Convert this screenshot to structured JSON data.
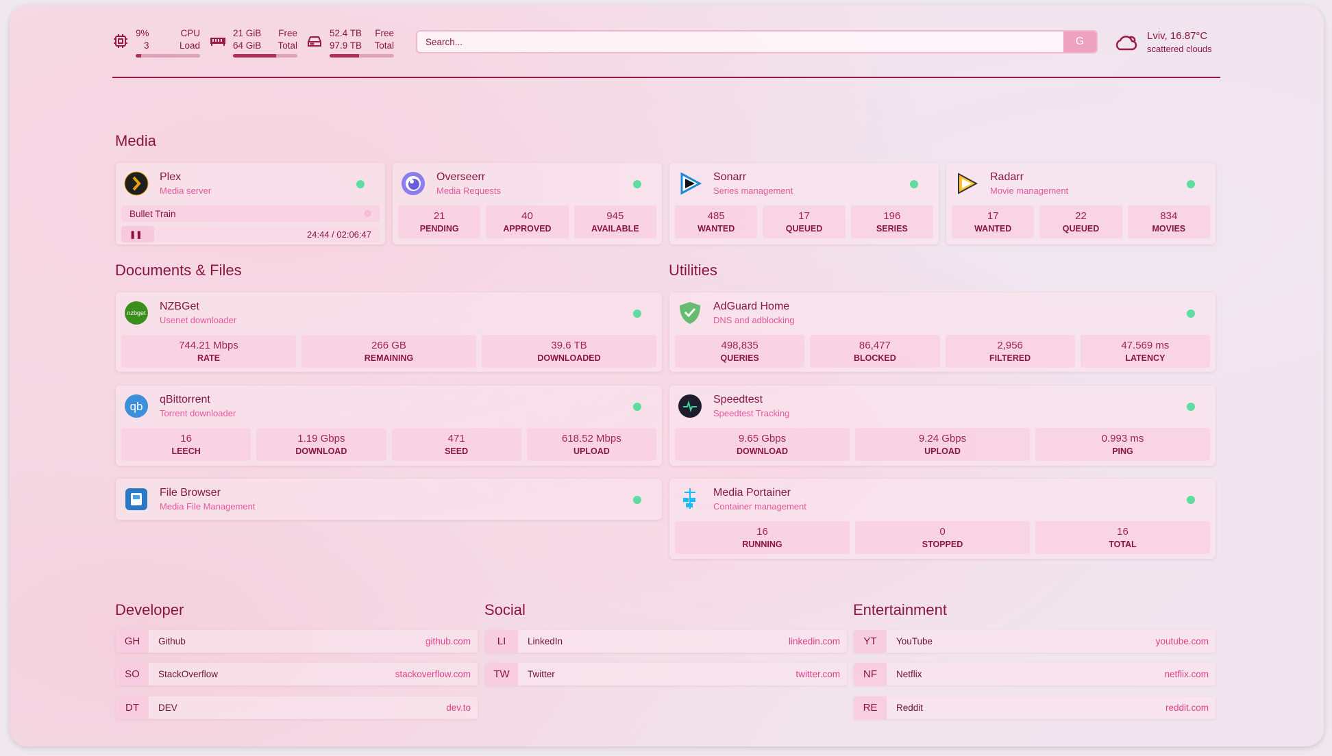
{
  "header": {
    "cpu": {
      "value": "9%",
      "sub": "3",
      "label1": "CPU",
      "label2": "Load",
      "fill": 9
    },
    "memory": {
      "value": "21 GiB",
      "sub": "64 GiB",
      "label1": "Free",
      "label2": "Total",
      "fill": 67
    },
    "disk": {
      "value": "52.4 TB",
      "sub": "97.9 TB",
      "label1": "Free",
      "label2": "Total",
      "fill": 46
    },
    "search": {
      "placeholder": "Search...",
      "button": "G"
    },
    "weather": {
      "location_temp": "Lviv, 16.87°C",
      "condition": "scattered clouds",
      "icon": "cloud-icon"
    }
  },
  "sections": {
    "media": "Media",
    "documents": "Documents & Files",
    "utilities": "Utilities",
    "developer": "Developer",
    "social": "Social",
    "entertainment": "Entertainment"
  },
  "colors": {
    "accent": "#8a1640",
    "subtitle": "#e6589a",
    "status_online": "#5fdc9f"
  },
  "services": [
    {
      "id": "plex",
      "title": "Plex",
      "sub": "Media server",
      "icon": "plex-icon",
      "now_playing": {
        "title": "Bullet Train",
        "time": "24:44 / 02:06:47"
      }
    },
    {
      "id": "overseerr",
      "title": "Overseerr",
      "sub": "Media Requests",
      "icon": "overseerr-icon",
      "stats": [
        {
          "v": "21",
          "l": "PENDING"
        },
        {
          "v": "40",
          "l": "APPROVED"
        },
        {
          "v": "945",
          "l": "AVAILABLE"
        }
      ]
    },
    {
      "id": "sonarr",
      "title": "Sonarr",
      "sub": "Series management",
      "icon": "sonarr-icon",
      "stats": [
        {
          "v": "485",
          "l": "WANTED"
        },
        {
          "v": "17",
          "l": "QUEUED"
        },
        {
          "v": "196",
          "l": "SERIES"
        }
      ]
    },
    {
      "id": "radarr",
      "title": "Radarr",
      "sub": "Movie management",
      "icon": "radarr-icon",
      "stats": [
        {
          "v": "17",
          "l": "WANTED"
        },
        {
          "v": "22",
          "l": "QUEUED"
        },
        {
          "v": "834",
          "l": "MOVIES"
        }
      ]
    },
    {
      "id": "nzbget",
      "title": "NZBGet",
      "sub": "Usenet downloader",
      "icon": "nzbget-icon",
      "stats": [
        {
          "v": "744.21 Mbps",
          "l": "RATE"
        },
        {
          "v": "266 GB",
          "l": "REMAINING"
        },
        {
          "v": "39.6 TB",
          "l": "DOWNLOADED"
        }
      ]
    },
    {
      "id": "qbittorrent",
      "title": "qBittorrent",
      "sub": "Torrent downloader",
      "icon": "qbittorrent-icon",
      "stats": [
        {
          "v": "16",
          "l": "LEECH"
        },
        {
          "v": "1.19 Gbps",
          "l": "DOWNLOAD"
        },
        {
          "v": "471",
          "l": "SEED"
        },
        {
          "v": "618.52 Mbps",
          "l": "UPLOAD"
        }
      ]
    },
    {
      "id": "filebrowser",
      "title": "File Browser",
      "sub": "Media File Management",
      "icon": "file-browser-icon"
    },
    {
      "id": "adguard",
      "title": "AdGuard Home",
      "sub": "DNS and adblocking",
      "icon": "adguard-icon",
      "stats": [
        {
          "v": "498,835",
          "l": "QUERIES"
        },
        {
          "v": "86,477",
          "l": "BLOCKED"
        },
        {
          "v": "2,956",
          "l": "FILTERED"
        },
        {
          "v": "47.569 ms",
          "l": "LATENCY"
        }
      ]
    },
    {
      "id": "speedtest",
      "title": "Speedtest",
      "sub": "Speedtest Tracking",
      "icon": "speedtest-icon",
      "stats": [
        {
          "v": "9.65 Gbps",
          "l": "DOWNLOAD"
        },
        {
          "v": "9.24 Gbps",
          "l": "UPLOAD"
        },
        {
          "v": "0.993 ms",
          "l": "PING"
        }
      ]
    },
    {
      "id": "portainer",
      "title": "Media Portainer",
      "sub": "Container management",
      "icon": "portainer-icon",
      "stats": [
        {
          "v": "16",
          "l": "RUNNING"
        },
        {
          "v": "0",
          "l": "STOPPED"
        },
        {
          "v": "16",
          "l": "TOTAL"
        }
      ]
    }
  ],
  "bookmarks": [
    [
      {
        "ab": "GH",
        "name": "Github",
        "url": "github.com"
      },
      {
        "ab": "SO",
        "name": "StackOverflow",
        "url": "stackoverflow.com"
      },
      {
        "ab": "DT",
        "name": "DEV",
        "url": "dev.to"
      }
    ],
    [
      {
        "ab": "LI",
        "name": "LinkedIn",
        "url": "linkedin.com"
      },
      {
        "ab": "TW",
        "name": "Twitter",
        "url": "twitter.com"
      }
    ],
    [
      {
        "ab": "YT",
        "name": "YouTube",
        "url": "youtube.com"
      },
      {
        "ab": "NF",
        "name": "Netflix",
        "url": "netflix.com"
      },
      {
        "ab": "RE",
        "name": "Reddit",
        "url": "reddit.com"
      }
    ]
  ]
}
